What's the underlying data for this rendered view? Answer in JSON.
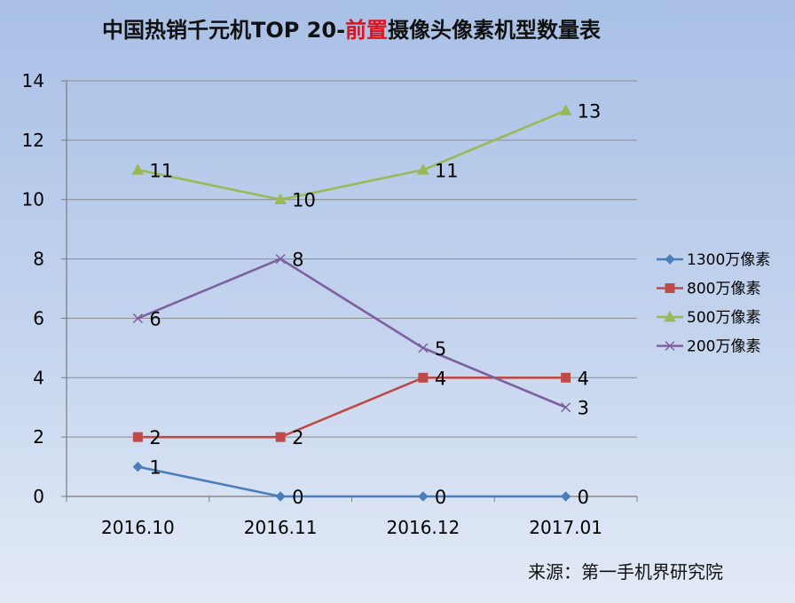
{
  "chart_data": {
    "type": "line",
    "title_parts": [
      {
        "text": "中国热销千元机TOP 20-",
        "color": "#111111"
      },
      {
        "text": "前置",
        "color": "#e0111b"
      },
      {
        "text": "摄像头像素机型数量表",
        "color": "#111111"
      }
    ],
    "categories": [
      "2016.10",
      "2016.11",
      "2016.12",
      "2017.01"
    ],
    "ylim": [
      0,
      14
    ],
    "yticks": [
      "0",
      "2",
      "4",
      "6",
      "8",
      "10",
      "12",
      "14"
    ],
    "grid": true,
    "legend_position": "right",
    "series": [
      {
        "name": "1300万像素",
        "values": [
          1,
          0,
          0,
          0
        ],
        "color": "#4a7ebb",
        "marker": "diamond"
      },
      {
        "name": "800万像素",
        "values": [
          2,
          2,
          4,
          4
        ],
        "color": "#be4b48",
        "marker": "square"
      },
      {
        "name": "500万像素",
        "values": [
          11,
          10,
          11,
          13
        ],
        "color": "#98b954",
        "marker": "triangle"
      },
      {
        "name": "200万像素",
        "values": [
          6,
          8,
          5,
          3
        ],
        "color": "#7d60a0",
        "marker": "x"
      }
    ],
    "source": "来源：第一手机界研究院"
  }
}
